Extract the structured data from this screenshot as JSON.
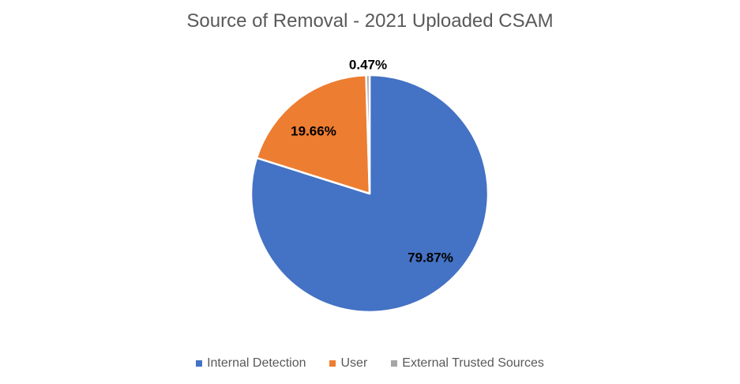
{
  "chart_data": {
    "type": "pie",
    "title": "Source of Removal - 2021 Uploaded CSAM",
    "legend_position": "bottom",
    "slices": [
      {
        "label": "Internal Detection",
        "value": 79.87,
        "display": "79.87%",
        "color": "#4472C4"
      },
      {
        "label": "User",
        "value": 19.66,
        "display": "19.66%",
        "color": "#ED7D31"
      },
      {
        "label": "External Trusted Sources",
        "value": 0.47,
        "display": "0.47%",
        "color": "#A5A5A5"
      }
    ]
  }
}
